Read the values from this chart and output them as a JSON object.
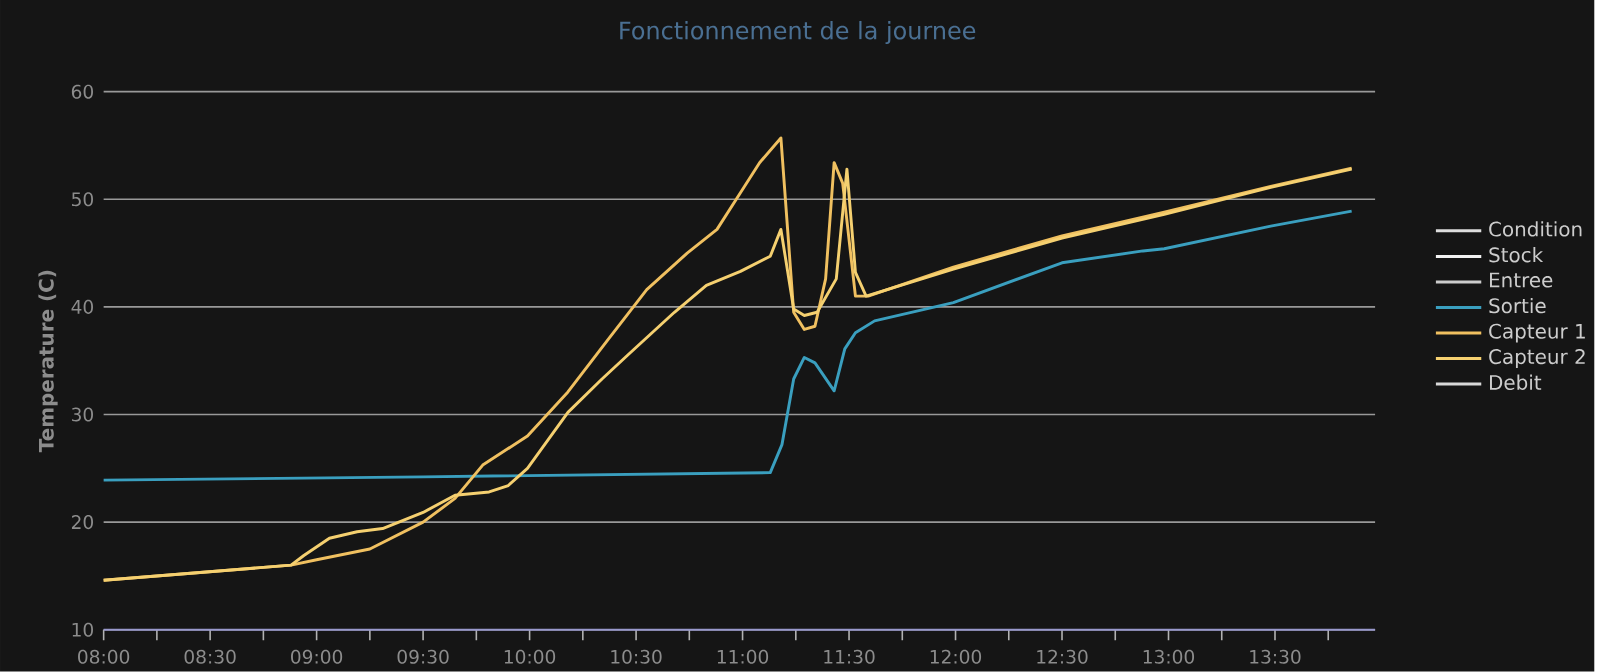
{
  "chart_data": {
    "type": "line",
    "title": "Fonctionnement de la journee",
    "ylabel": "Temperature (C)",
    "xlim": [
      8,
      13.97
    ],
    "ylim": [
      10,
      60
    ],
    "xticks": [
      {
        "value": 8,
        "label": "08:00"
      },
      {
        "value": 8.25,
        "label": null
      },
      {
        "value": 8.5,
        "label": "08:30"
      },
      {
        "value": 8.75,
        "label": null
      },
      {
        "value": 9,
        "label": "09:00"
      },
      {
        "value": 9.25,
        "label": null
      },
      {
        "value": 9.5,
        "label": "09:30"
      },
      {
        "value": 9.75,
        "label": null
      },
      {
        "value": 10,
        "label": "10:00"
      },
      {
        "value": 10.25,
        "label": null
      },
      {
        "value": 10.5,
        "label": "10:30"
      },
      {
        "value": 10.75,
        "label": null
      },
      {
        "value": 11,
        "label": "11:00"
      },
      {
        "value": 11.25,
        "label": null
      },
      {
        "value": 11.5,
        "label": "11:30"
      },
      {
        "value": 11.75,
        "label": null
      },
      {
        "value": 12,
        "label": "12:00"
      },
      {
        "value": 12.25,
        "label": null
      },
      {
        "value": 12.5,
        "label": "12:30"
      },
      {
        "value": 12.75,
        "label": null
      },
      {
        "value": 13,
        "label": "13:00"
      },
      {
        "value": 13.25,
        "label": null
      },
      {
        "value": 13.5,
        "label": "13:30"
      },
      {
        "value": 13.75,
        "label": null
      }
    ],
    "yticks": [
      10,
      20,
      30,
      40,
      50,
      60
    ],
    "grid": "y",
    "legend": "right",
    "marker": "none",
    "line_style": "solid",
    "series": [
      {
        "name": "Condition",
        "color": "#dddddd"
      },
      {
        "name": "Stock",
        "color": "#f2f2f2"
      },
      {
        "name": "Entree",
        "color": "#cccccc"
      },
      {
        "name": "Sortie",
        "color": "#3a9fbf",
        "x": [
          8.0,
          9.5,
          11.13,
          11.185,
          11.24,
          11.29,
          11.34,
          11.43,
          11.48,
          11.53,
          11.62,
          11.99,
          12.5,
          12.88,
          12.98,
          13.48,
          13.86
        ],
        "values": [
          23.9,
          24.2,
          24.6,
          27.2,
          33.3,
          35.3,
          34.8,
          32.2,
          36.1,
          37.6,
          38.7,
          40.4,
          44.1,
          45.2,
          45.4,
          47.5,
          48.9
        ]
      },
      {
        "name": "Capteur 1",
        "color": "#f0c060",
        "x": [
          8.0,
          8.88,
          9.0,
          9.25,
          9.5,
          9.65,
          9.78,
          9.99,
          10.18,
          10.37,
          10.55,
          10.74,
          10.88,
          10.99,
          11.08,
          11.18,
          11.24,
          11.29,
          11.34,
          11.39,
          11.43,
          11.47,
          11.53,
          11.59,
          11.99,
          12.5,
          12.98,
          13.48,
          13.86
        ],
        "values": [
          14.6,
          16.0,
          16.5,
          17.5,
          20.0,
          22.2,
          25.3,
          28.0,
          32.1,
          37.0,
          41.6,
          45.0,
          47.2,
          50.6,
          53.4,
          55.7,
          39.5,
          37.9,
          38.2,
          42.6,
          53.4,
          51.5,
          41.0,
          41.0,
          43.7,
          46.6,
          48.8,
          51.2,
          52.9
        ]
      },
      {
        "name": "Capteur 2",
        "color": "#f5d070",
        "x": [
          8.0,
          8.88,
          8.94,
          9.06,
          9.19,
          9.31,
          9.5,
          9.65,
          9.81,
          9.9,
          9.99,
          10.18,
          10.34,
          10.46,
          10.68,
          10.83,
          10.99,
          11.13,
          11.18,
          11.24,
          11.29,
          11.35,
          11.44,
          11.49,
          11.53,
          11.58,
          11.99,
          12.5,
          12.98,
          13.48,
          13.86
        ],
        "values": [
          14.6,
          16.0,
          16.9,
          18.5,
          19.1,
          19.4,
          20.9,
          22.5,
          22.8,
          23.4,
          25.0,
          30.2,
          33.3,
          35.5,
          39.5,
          42.0,
          43.3,
          44.7,
          47.2,
          39.8,
          39.2,
          39.5,
          42.6,
          52.8,
          43.2,
          41.0,
          43.5,
          46.4,
          48.6,
          51.1,
          52.8
        ]
      },
      {
        "name": "Debit",
        "color": "#d8d8d8"
      }
    ]
  }
}
